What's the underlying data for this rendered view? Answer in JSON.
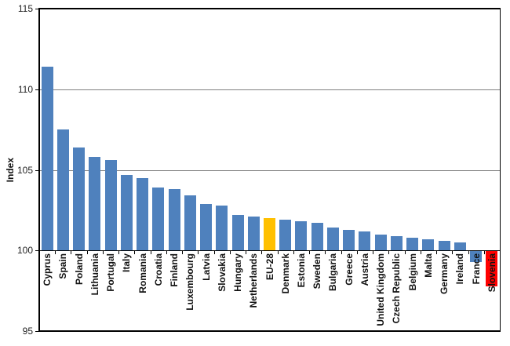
{
  "chart_data": {
    "type": "bar",
    "title": "",
    "ylabel": "Index",
    "xlabel": "",
    "ylim": [
      95,
      115
    ],
    "yticks": [
      115,
      110,
      105,
      100,
      95
    ],
    "baseline": 100,
    "gridlines_at": [
      110,
      105
    ],
    "grid": "horizontal",
    "legend_position": "none",
    "categories": [
      "Cyprus",
      "Spain",
      "Poland",
      "Lithuania",
      "Portugal",
      "Italy",
      "Romania",
      "Croatia",
      "Finland",
      "Luxembourg",
      "Latvia",
      "Slovakia",
      "Hungary",
      "Netherlands",
      "EU-28",
      "Denmark",
      "Estonia",
      "Sweden",
      "Bulgaria",
      "Greece",
      "Austria",
      "United Kingdom",
      "Czech Republic",
      "Belgium",
      "Malta",
      "Germany",
      "Ireland",
      "France",
      "Slovenia"
    ],
    "values": [
      111.4,
      107.5,
      106.4,
      105.8,
      105.6,
      104.7,
      104.5,
      103.9,
      103.8,
      103.4,
      102.9,
      102.8,
      102.2,
      102.1,
      102.0,
      101.9,
      101.8,
      101.7,
      101.4,
      101.3,
      101.2,
      101.0,
      100.9,
      100.8,
      100.7,
      100.6,
      100.5,
      99.3,
      97.8
    ],
    "bar_colors": [
      "#4F81BD",
      "#4F81BD",
      "#4F81BD",
      "#4F81BD",
      "#4F81BD",
      "#4F81BD",
      "#4F81BD",
      "#4F81BD",
      "#4F81BD",
      "#4F81BD",
      "#4F81BD",
      "#4F81BD",
      "#4F81BD",
      "#4F81BD",
      "#FFC000",
      "#4F81BD",
      "#4F81BD",
      "#4F81BD",
      "#4F81BD",
      "#4F81BD",
      "#4F81BD",
      "#4F81BD",
      "#4F81BD",
      "#4F81BD",
      "#4F81BD",
      "#4F81BD",
      "#4F81BD",
      "#4F81BD",
      "#FF0000"
    ],
    "colors": {
      "bar_default": "#4F81BD",
      "bar_eu28": "#FFC000",
      "bar_slovenia": "#FF0000",
      "gridline": "#808080",
      "axis": "#000000",
      "text": "#1f1f1f"
    }
  }
}
